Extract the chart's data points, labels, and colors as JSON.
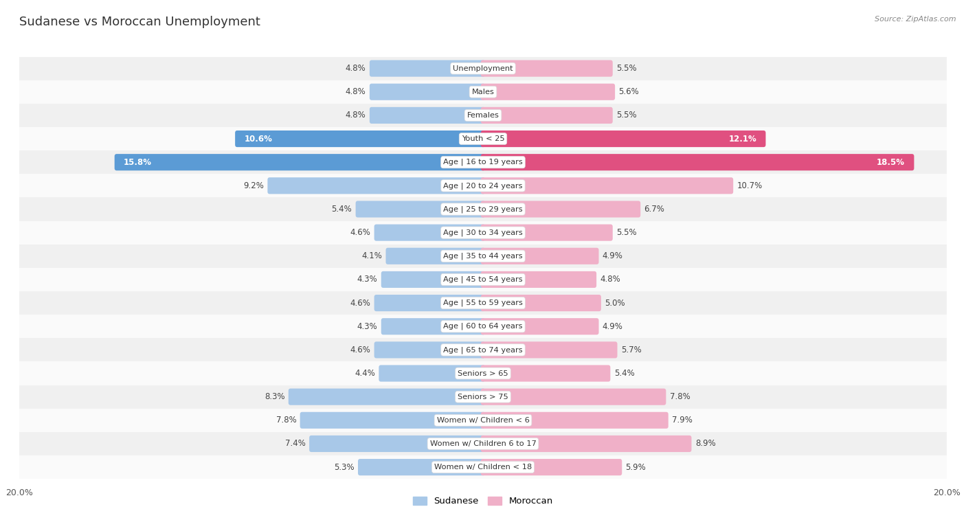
{
  "title": "Sudanese vs Moroccan Unemployment",
  "source": "Source: ZipAtlas.com",
  "categories": [
    "Unemployment",
    "Males",
    "Females",
    "Youth < 25",
    "Age | 16 to 19 years",
    "Age | 20 to 24 years",
    "Age | 25 to 29 years",
    "Age | 30 to 34 years",
    "Age | 35 to 44 years",
    "Age | 45 to 54 years",
    "Age | 55 to 59 years",
    "Age | 60 to 64 years",
    "Age | 65 to 74 years",
    "Seniors > 65",
    "Seniors > 75",
    "Women w/ Children < 6",
    "Women w/ Children 6 to 17",
    "Women w/ Children < 18"
  ],
  "sudanese": [
    4.8,
    4.8,
    4.8,
    10.6,
    15.8,
    9.2,
    5.4,
    4.6,
    4.1,
    4.3,
    4.6,
    4.3,
    4.6,
    4.4,
    8.3,
    7.8,
    7.4,
    5.3
  ],
  "moroccan": [
    5.5,
    5.6,
    5.5,
    12.1,
    18.5,
    10.7,
    6.7,
    5.5,
    4.9,
    4.8,
    5.0,
    4.9,
    5.7,
    5.4,
    7.8,
    7.9,
    8.9,
    5.9
  ],
  "sudanese_color_normal": "#a8c8e8",
  "moroccan_color_normal": "#f0b0c8",
  "sudanese_color_highlight": "#5b9bd5",
  "moroccan_color_highlight": "#e05080",
  "highlight_rows": [
    3,
    4
  ],
  "row_bg_even": "#f0f0f0",
  "row_bg_odd": "#fafafa",
  "x_max": 20.0,
  "bar_height": 0.52,
  "legend_sudanese": "Sudanese",
  "legend_moroccan": "Moroccan",
  "value_label_color_normal": "#555555",
  "value_label_color_highlight_s": "#ffffff",
  "value_label_color_highlight_m": "#ffffff"
}
